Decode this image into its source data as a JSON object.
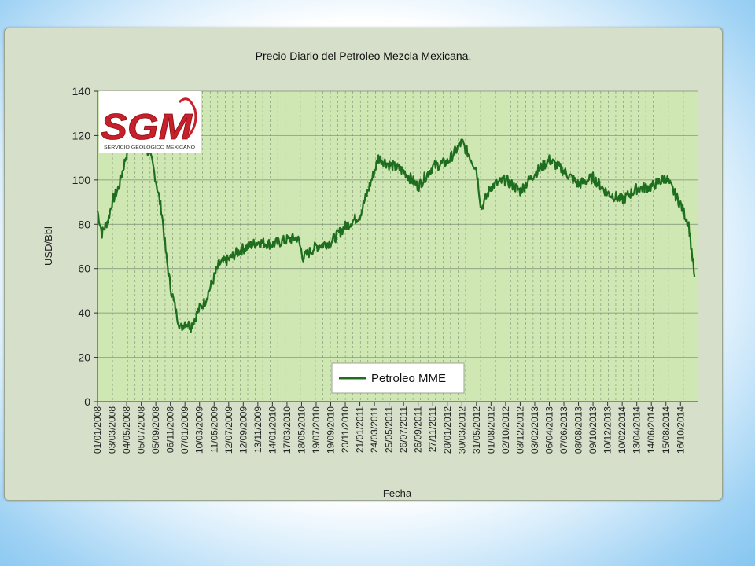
{
  "colors": {
    "plot_bg": "#cfe8b3",
    "panel_bg": "#d5dfc9",
    "series": "#1f6e1f",
    "grid": "#7c8c76",
    "logo_red": "#c8202a"
  },
  "logo": {
    "letters": "SGM",
    "text": "SERVICIO GEOLÓGICO MEXICANO"
  },
  "chart_data": {
    "type": "line",
    "title": "Precio Diario del Petroleo Mezcla Mexicana.",
    "xlabel": "Fecha",
    "ylabel": "USD/Bbl",
    "ylim": [
      0,
      140
    ],
    "yticks": [
      0,
      20,
      40,
      60,
      80,
      100,
      120,
      140
    ],
    "grid": true,
    "legend_position": "bottom-center",
    "xtick_labels": [
      "01/01/2008",
      "03/03/2008",
      "04/05/2008",
      "05/07/2008",
      "05/09/2008",
      "06/11/2008",
      "07/01/2009",
      "10/03/2009",
      "11/05/2009",
      "12/07/2009",
      "12/09/2009",
      "13/11/2009",
      "14/01/2010",
      "17/03/2010",
      "18/05/2010",
      "19/07/2010",
      "19/09/2010",
      "20/11/2010",
      "21/01/2011",
      "24/03/2011",
      "25/05/2011",
      "26/07/2011",
      "26/09/2011",
      "27/11/2011",
      "28/01/2012",
      "30/03/2012",
      "31/05/2012",
      "01/08/2012",
      "02/10/2012",
      "03/12/2012",
      "03/02/2013",
      "06/04/2013",
      "07/06/2013",
      "08/08/2013",
      "09/10/2013",
      "10/12/2013",
      "10/02/2014",
      "13/04/2014",
      "14/06/2014",
      "15/08/2014",
      "16/10/2014"
    ],
    "series": [
      {
        "name": "Petroleo MME",
        "x": [
          "01/01/2008",
          "20/01/2008",
          "15/02/2008",
          "03/03/2008",
          "01/04/2008",
          "04/05/2008",
          "01/06/2008",
          "20/06/2008",
          "05/07/2008",
          "15/07/2008",
          "01/08/2008",
          "20/08/2008",
          "05/09/2008",
          "01/10/2008",
          "20/10/2008",
          "06/11/2008",
          "01/12/2008",
          "20/12/2008",
          "07/01/2009",
          "01/02/2009",
          "10/03/2009",
          "01/04/2009",
          "11/05/2009",
          "01/06/2009",
          "12/07/2009",
          "01/08/2009",
          "12/09/2009",
          "13/11/2009",
          "14/01/2010",
          "17/03/2010",
          "01/05/2010",
          "25/05/2010",
          "19/07/2010",
          "19/09/2010",
          "20/11/2010",
          "21/01/2011",
          "24/03/2011",
          "10/04/2011",
          "25/05/2011",
          "26/07/2011",
          "26/09/2011",
          "27/11/2011",
          "28/01/2012",
          "30/03/2012",
          "31/05/2012",
          "20/06/2012",
          "01/08/2012",
          "02/10/2012",
          "03/12/2012",
          "03/02/2013",
          "06/04/2013",
          "07/06/2013",
          "08/08/2013",
          "09/10/2013",
          "10/12/2013",
          "10/02/2014",
          "13/04/2014",
          "14/06/2014",
          "15/08/2014",
          "16/10/2014",
          "20/11/2014",
          "15/12/2014"
        ],
        "values": [
          86,
          76,
          82,
          90,
          97,
          112,
          120,
          127,
          130,
          121,
          113,
          108,
          100,
          85,
          65,
          52,
          40,
          33,
          36,
          34,
          42,
          45,
          56,
          62,
          64,
          66,
          69,
          72,
          71,
          73,
          74,
          65,
          70,
          72,
          79,
          84,
          104,
          110,
          107,
          104,
          97,
          106,
          108,
          117,
          105,
          87,
          97,
          100,
          95,
          103,
          109,
          104,
          98,
          101,
          94,
          91,
          96,
          97,
          101,
          89,
          80,
          56
        ]
      }
    ]
  }
}
